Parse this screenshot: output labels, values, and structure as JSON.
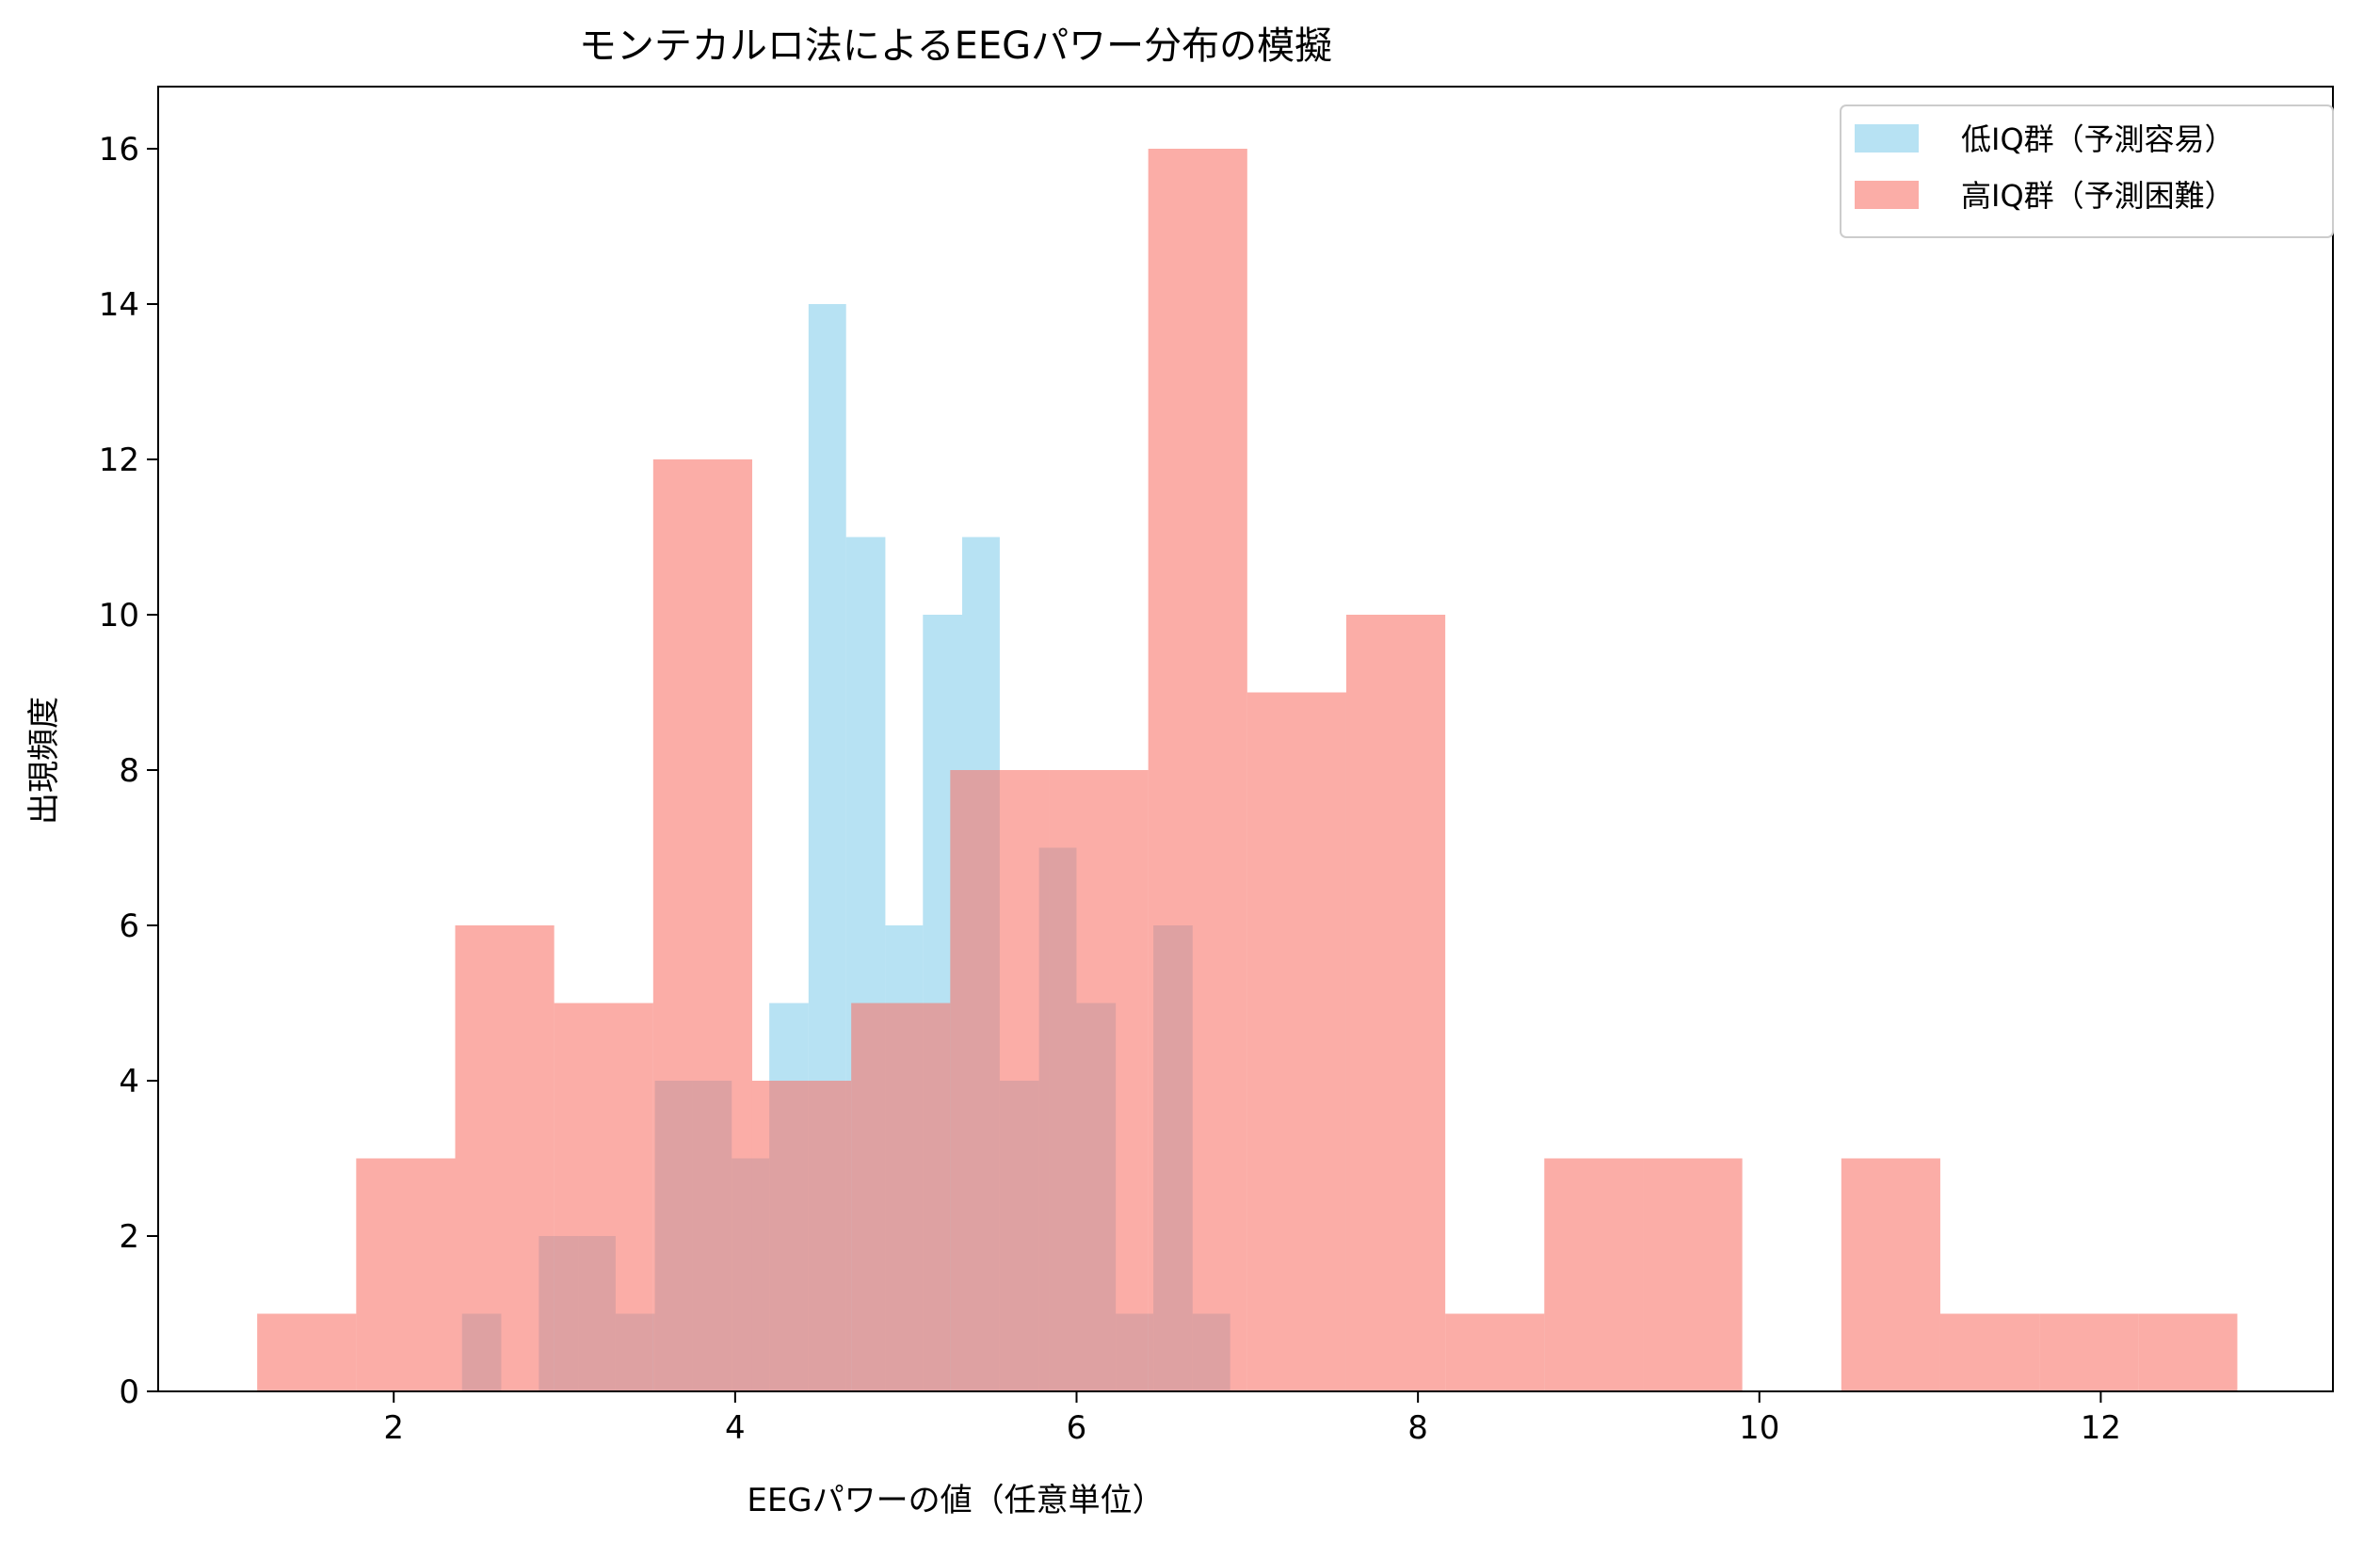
{
  "chart_data": {
    "type": "bar",
    "subtype": "overlaid-histogram",
    "title": "モンテカルロ法によるEEGパワー分布の模擬",
    "xlabel": "EEGパワーの値（任意単位）",
    "ylabel": "出現頻度",
    "xlim": [
      0.62,
      13.36
    ],
    "ylim": [
      0,
      16.8
    ],
    "xticks": [
      2,
      4,
      6,
      8,
      10,
      12
    ],
    "yticks": [
      0,
      2,
      4,
      6,
      8,
      10,
      12,
      14,
      16
    ],
    "grid": false,
    "legend_position": "top-right",
    "series": [
      {
        "name": "低IQ群（予測容易）",
        "color": "#87CEEB",
        "alpha": 0.6,
        "bin_edges": [
          2.4,
          2.63,
          2.85,
          3.08,
          3.3,
          3.53,
          3.75,
          3.98,
          4.2,
          4.43,
          4.65,
          4.88,
          5.1,
          5.33,
          5.55,
          5.78,
          6.0,
          6.23,
          6.45,
          6.68,
          6.9
        ],
        "counts": [
          1,
          0,
          2,
          2,
          1,
          4,
          4,
          3,
          5,
          14,
          11,
          6,
          10,
          11,
          4,
          7,
          5,
          1,
          6,
          1
        ]
      },
      {
        "name": "高IQ群（予測困難）",
        "color": "#F8766D",
        "alpha": 0.6,
        "bin_edges": [
          1.2,
          1.78,
          2.36,
          2.94,
          3.52,
          4.1,
          4.68,
          5.26,
          5.84,
          6.42,
          7.0,
          7.58,
          8.16,
          8.74,
          9.32,
          9.9,
          10.48,
          11.06,
          11.64,
          12.22,
          12.8
        ],
        "counts": [
          1,
          3,
          6,
          5,
          12,
          4,
          5,
          8,
          8,
          16,
          9,
          10,
          1,
          3,
          3,
          0,
          3,
          1,
          1,
          1
        ]
      }
    ]
  }
}
